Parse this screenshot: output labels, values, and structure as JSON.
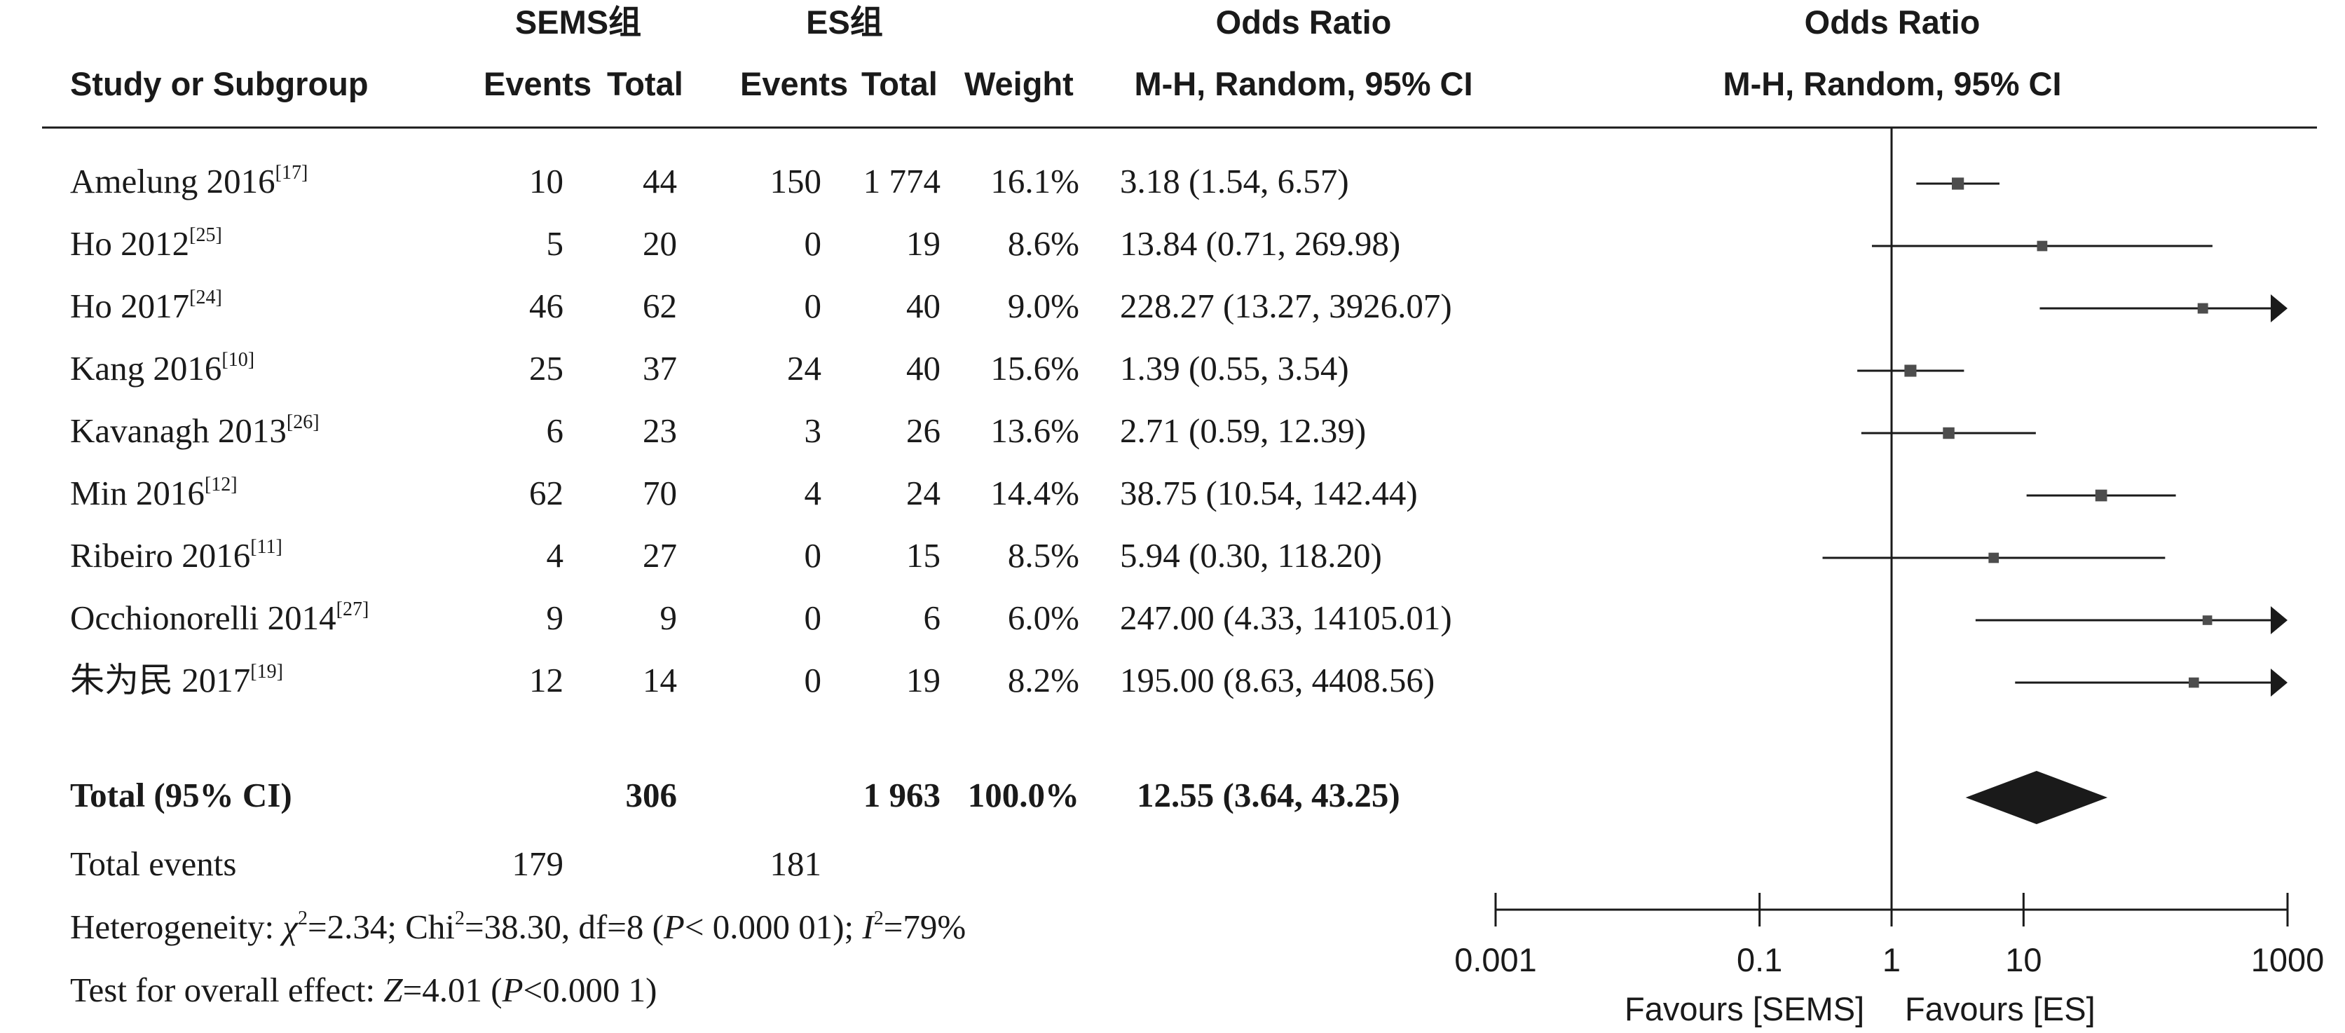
{
  "headers": {
    "study": "Study or Subgroup",
    "group1": "SEMS组",
    "group2": "ES组",
    "events": "Events",
    "total": "Total",
    "weight": "Weight",
    "or_title": "Odds Ratio",
    "or_method": "M-H, Random, 95% CI",
    "plot_title": "Odds Ratio",
    "plot_method": "M-H, Random, 95% CI"
  },
  "studies": [
    {
      "name": "Amelung 2016",
      "ref": "[17]",
      "e1": "10",
      "n1": "44",
      "e2": "150",
      "n2": "1 774",
      "weight": "16.1%",
      "ci_text": "3.18 (1.54, 6.57)"
    },
    {
      "name": "Ho 2012",
      "ref": "[25]",
      "e1": "5",
      "n1": "20",
      "e2": "0",
      "n2": "19",
      "weight": "8.6%",
      "ci_text": "13.84 (0.71, 269.98)"
    },
    {
      "name": "Ho 2017",
      "ref": "[24]",
      "e1": "46",
      "n1": "62",
      "e2": "0",
      "n2": "40",
      "weight": "9.0%",
      "ci_text": "228.27 (13.27, 3926.07)"
    },
    {
      "name": "Kang 2016",
      "ref": "[10]",
      "e1": "25",
      "n1": "37",
      "e2": "24",
      "n2": "40",
      "weight": "15.6%",
      "ci_text": "1.39 (0.55, 3.54)"
    },
    {
      "name": "Kavanagh 2013",
      "ref": "[26]",
      "e1": "6",
      "n1": "23",
      "e2": "3",
      "n2": "26",
      "weight": "13.6%",
      "ci_text": "2.71 (0.59, 12.39)"
    },
    {
      "name": "Min 2016",
      "ref": "[12]",
      "e1": "62",
      "n1": "70",
      "e2": "4",
      "n2": "24",
      "weight": "14.4%",
      "ci_text": "38.75 (10.54, 142.44)"
    },
    {
      "name": "Ribeiro 2016",
      "ref": "[11]",
      "e1": "4",
      "n1": "27",
      "e2": "0",
      "n2": "15",
      "weight": "8.5%",
      "ci_text": "5.94 (0.30, 118.20)"
    },
    {
      "name": "Occhionorelli 2014",
      "ref": "[27]",
      "e1": "9",
      "n1": "9",
      "e2": "0",
      "n2": "6",
      "weight": "6.0%",
      "ci_text": "247.00 (4.33, 14105.01)"
    },
    {
      "name": "朱为民 2017",
      "ref": "[19]",
      "e1": "12",
      "n1": "14",
      "e2": "0",
      "n2": "19",
      "weight": "8.2%",
      "ci_text": "195.00 (8.63, 4408.56)"
    }
  ],
  "total_row": {
    "label": "Total (95% CI)",
    "n1": "306",
    "n2": "1 963",
    "weight": "100.0%",
    "ci_text": "12.55 (3.64, 43.25)"
  },
  "total_events": {
    "label": "Total events",
    "e1": "179",
    "e2": "181"
  },
  "heterogeneity": {
    "lead": "Heterogeneity: ",
    "tau_sym": "χ",
    "tau_rest": "=2.34; Chi",
    "chi_rest": "=38.30, df=8 (",
    "p_sym": "P",
    "p_rest": "< 0.000 01); ",
    "i_sym": "I",
    "i_rest": "=79%",
    "sq": "2"
  },
  "overall": {
    "lead": "Test for overall effect: ",
    "z_sym": "Z",
    "z_rest": "=4.01 (",
    "p_sym": "P",
    "p_rest": "<0.000 1)"
  },
  "axis": {
    "favours_left": "Favours [SEMS]",
    "favours_right": "Favours [ES]"
  },
  "chart_data": {
    "type": "forest",
    "scale": "log",
    "xlim": [
      0.001,
      1000
    ],
    "ticks": [
      {
        "value": 0.001,
        "label": "0.001"
      },
      {
        "value": 0.1,
        "label": "0.1"
      },
      {
        "value": 1,
        "label": "1"
      },
      {
        "value": 10,
        "label": "10"
      },
      {
        "value": 1000,
        "label": "1000"
      }
    ],
    "reference_line": 1,
    "points": [
      {
        "or": 3.18,
        "lo": 1.54,
        "hi": 6.57,
        "weight": 16.1
      },
      {
        "or": 13.84,
        "lo": 0.71,
        "hi": 269.98,
        "weight": 8.6
      },
      {
        "or": 228.27,
        "lo": 13.27,
        "hi": 3926.07,
        "weight": 9.0
      },
      {
        "or": 1.39,
        "lo": 0.55,
        "hi": 3.54,
        "weight": 15.6
      },
      {
        "or": 2.71,
        "lo": 0.59,
        "hi": 12.39,
        "weight": 13.6
      },
      {
        "or": 38.75,
        "lo": 10.54,
        "hi": 142.44,
        "weight": 14.4
      },
      {
        "or": 5.94,
        "lo": 0.3,
        "hi": 118.2,
        "weight": 8.5
      },
      {
        "or": 247.0,
        "lo": 4.33,
        "hi": 14105.01,
        "weight": 6.0
      },
      {
        "or": 195.0,
        "lo": 8.63,
        "hi": 4408.56,
        "weight": 8.2
      }
    ],
    "summary": {
      "or": 12.55,
      "lo": 3.64,
      "hi": 43.25
    },
    "colors": {
      "marker": "#4d4d4d",
      "diamond": "#1a1a1a",
      "line": "#1a1a1a"
    }
  }
}
